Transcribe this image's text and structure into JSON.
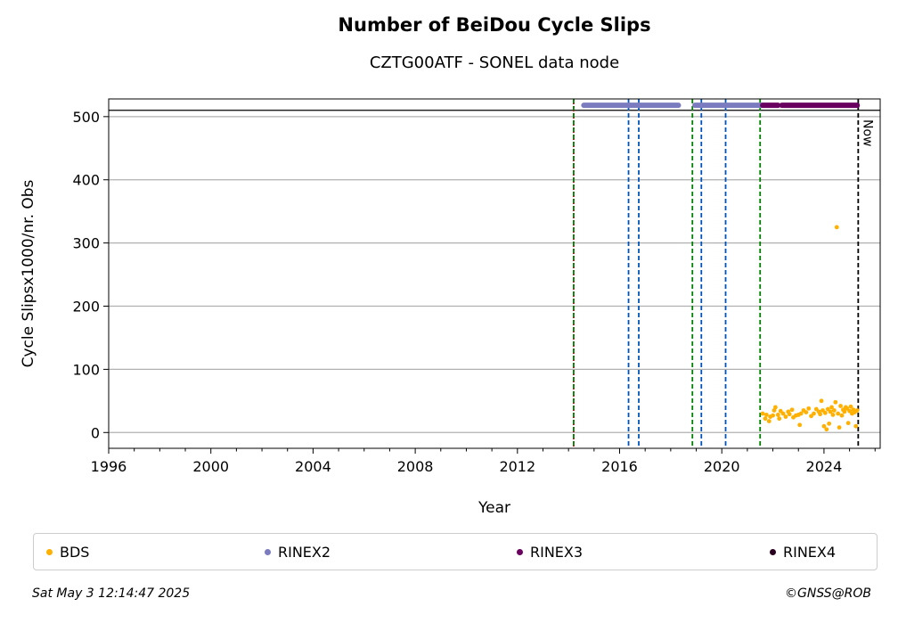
{
  "title": "Number of BeiDou Cycle Slips",
  "subtitle": "CZTG00ATF - SONEL data node",
  "timestamp": "Sat May  3 12:14:47 2025",
  "credit": "©GNSS@ROB",
  "chart_data": {
    "type": "scatter",
    "xlabel": "Year",
    "ylabel": "Cycle Slipsx1000/nr. Obs",
    "xlim": [
      1996,
      2026.2
    ],
    "ylim": [
      -25,
      528
    ],
    "x_ticks": [
      1996,
      2000,
      2004,
      2008,
      2012,
      2016,
      2020,
      2024
    ],
    "y_ticks": [
      0,
      100,
      200,
      300,
      400,
      500
    ],
    "grid": "horizontal",
    "reference_line_y": 510,
    "now_label": "Now",
    "now_x": 2025.34,
    "vertical_lines": [
      {
        "x": 2014.2,
        "color": "#cc0000",
        "style": "dotted"
      },
      {
        "x": 2014.2,
        "color": "#008000",
        "style": "dashed"
      },
      {
        "x": 2016.35,
        "color": "#0055bb",
        "style": "dashed"
      },
      {
        "x": 2016.75,
        "color": "#0055bb",
        "style": "dashed"
      },
      {
        "x": 2018.85,
        "color": "#008000",
        "style": "dashed"
      },
      {
        "x": 2019.2,
        "color": "#0055bb",
        "style": "dashed"
      },
      {
        "x": 2020.15,
        "color": "#0055bb",
        "style": "dashed"
      },
      {
        "x": 2021.5,
        "color": "#008000",
        "style": "dashed"
      }
    ],
    "legend": [
      {
        "name": "BDS",
        "color": "#ffb000"
      },
      {
        "name": "RINEX2",
        "color": "#7b7bbf"
      },
      {
        "name": "RINEX3",
        "color": "#6a0060"
      },
      {
        "name": "RINEX4",
        "color": "#2a0020"
      }
    ],
    "availability": [
      {
        "series": "RINEX2",
        "y": 518,
        "from": 2014.6,
        "to": 2018.3
      },
      {
        "series": "RINEX2",
        "y": 518,
        "from": 2018.95,
        "to": 2021.6
      },
      {
        "series": "RINEX3",
        "y": 518,
        "from": 2021.6,
        "to": 2022.2
      },
      {
        "series": "RINEX3",
        "y": 518,
        "from": 2022.35,
        "to": 2025.3
      }
    ],
    "series": [
      {
        "name": "BDS",
        "color": "#ffb000",
        "points": [
          [
            2021.6,
            30
          ],
          [
            2021.7,
            22
          ],
          [
            2021.75,
            28
          ],
          [
            2021.85,
            18
          ],
          [
            2021.9,
            25
          ],
          [
            2022.0,
            27
          ],
          [
            2022.05,
            35
          ],
          [
            2022.1,
            40
          ],
          [
            2022.2,
            28
          ],
          [
            2022.25,
            22
          ],
          [
            2022.3,
            34
          ],
          [
            2022.4,
            30
          ],
          [
            2022.5,
            25
          ],
          [
            2022.6,
            33
          ],
          [
            2022.65,
            29
          ],
          [
            2022.75,
            36
          ],
          [
            2022.8,
            24
          ],
          [
            2022.9,
            27
          ],
          [
            2023.0,
            28
          ],
          [
            2023.05,
            12
          ],
          [
            2023.1,
            30
          ],
          [
            2023.2,
            35
          ],
          [
            2023.3,
            32
          ],
          [
            2023.4,
            38
          ],
          [
            2023.5,
            26
          ],
          [
            2023.6,
            30
          ],
          [
            2023.7,
            37
          ],
          [
            2023.8,
            33
          ],
          [
            2023.85,
            29
          ],
          [
            2023.9,
            50
          ],
          [
            2023.95,
            35
          ],
          [
            2024.0,
            10
          ],
          [
            2024.05,
            31
          ],
          [
            2024.1,
            5
          ],
          [
            2024.15,
            37
          ],
          [
            2024.2,
            14
          ],
          [
            2024.25,
            33
          ],
          [
            2024.3,
            40
          ],
          [
            2024.35,
            28
          ],
          [
            2024.4,
            35
          ],
          [
            2024.45,
            48
          ],
          [
            2024.5,
            325
          ],
          [
            2024.55,
            30
          ],
          [
            2024.6,
            8
          ],
          [
            2024.65,
            42
          ],
          [
            2024.7,
            27
          ],
          [
            2024.75,
            36
          ],
          [
            2024.8,
            33
          ],
          [
            2024.85,
            40
          ],
          [
            2024.9,
            38
          ],
          [
            2024.95,
            15
          ],
          [
            2025.0,
            34
          ],
          [
            2025.05,
            41
          ],
          [
            2025.1,
            30
          ],
          [
            2025.15,
            36
          ],
          [
            2025.2,
            32
          ],
          [
            2025.25,
            10
          ],
          [
            2025.3,
            35
          ]
        ]
      }
    ]
  }
}
